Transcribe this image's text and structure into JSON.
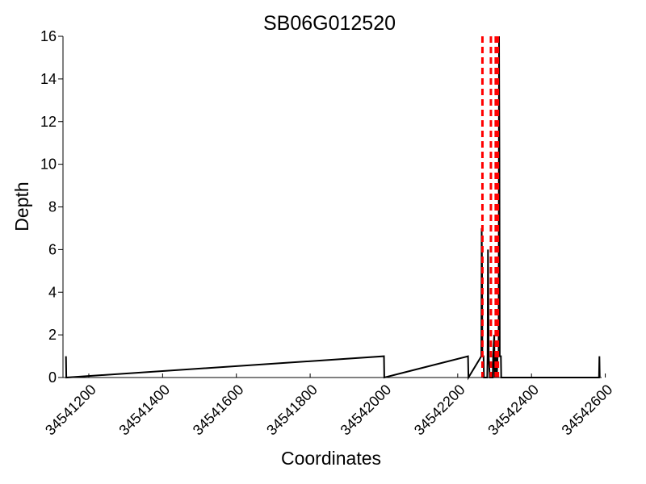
{
  "chart_data": {
    "type": "line",
    "title": "SB06G012520",
    "xlabel": "Coordinates",
    "ylabel": "Depth",
    "xlim": [
      34541130,
      34542590
    ],
    "ylim": [
      0,
      16
    ],
    "x_ticks": [
      34541200,
      34541400,
      34541600,
      34541800,
      34542000,
      34542200,
      34542400,
      34542600
    ],
    "y_ticks": [
      0,
      2,
      4,
      6,
      8,
      10,
      12,
      14,
      16
    ],
    "grid": false,
    "series": [
      {
        "color": "#000000",
        "style": "solid",
        "points": [
          {
            "x": 34541138,
            "y": 1
          },
          {
            "x": 34541139,
            "y": 0
          },
          {
            "x": 34542000,
            "y": 1
          },
          {
            "x": 34542001,
            "y": 0
          },
          {
            "x": 34542228,
            "y": 1
          },
          {
            "x": 34542229,
            "y": 0
          },
          {
            "x": 34542264,
            "y": 1
          },
          {
            "x": 34542265,
            "y": 7
          },
          {
            "x": 34542266,
            "y": 5
          },
          {
            "x": 34542267,
            "y": 1
          },
          {
            "x": 34542270,
            "y": 1
          },
          {
            "x": 34542271,
            "y": 0
          },
          {
            "x": 34542280,
            "y": 0
          },
          {
            "x": 34542281,
            "y": 1
          },
          {
            "x": 34542282,
            "y": 6
          },
          {
            "x": 34542283,
            "y": 4
          },
          {
            "x": 34542284,
            "y": 1
          },
          {
            "x": 34542287,
            "y": 0
          },
          {
            "x": 34542295,
            "y": 0
          },
          {
            "x": 34542296,
            "y": 1
          },
          {
            "x": 34542299,
            "y": 2
          },
          {
            "x": 34542300,
            "y": 0
          },
          {
            "x": 34542303,
            "y": 1
          },
          {
            "x": 34542306,
            "y": 0
          },
          {
            "x": 34542308,
            "y": 1
          },
          {
            "x": 34542311,
            "y": 1
          },
          {
            "x": 34542312,
            "y": 16
          },
          {
            "x": 34542313,
            "y": 10
          },
          {
            "x": 34542314,
            "y": 1
          },
          {
            "x": 34542317,
            "y": 1
          },
          {
            "x": 34542318,
            "y": 0
          },
          {
            "x": 34542583,
            "y": 0
          },
          {
            "x": 34542584,
            "y": 1
          },
          {
            "x": 34542585,
            "y": 0
          }
        ]
      }
    ],
    "vlines": [
      {
        "x": 34542267,
        "color": "#ff0000",
        "style": "dashed"
      },
      {
        "x": 34542290,
        "color": "#ff0000",
        "style": "dashed"
      },
      {
        "x": 34542303,
        "color": "#ff0000",
        "style": "dashed"
      },
      {
        "x": 34542309,
        "color": "#ff0000",
        "style": "dashed"
      }
    ]
  }
}
